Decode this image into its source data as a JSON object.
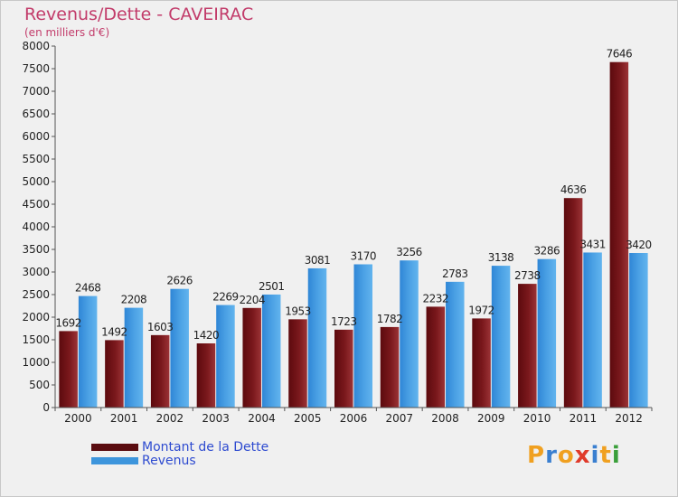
{
  "header": {
    "title": "Revenus/Dette - CAVEIRAC",
    "subtitle": "(en milliers d'€)"
  },
  "legend": {
    "debt_label": "Montant de la Dette",
    "revenue_label": "Revenus"
  },
  "logo": {
    "text": "Proxiti",
    "letters": [
      "P",
      "r",
      "o",
      "x",
      "i",
      "t",
      "i"
    ],
    "colors": [
      "#f0a020",
      "#3a7fd0",
      "#f0a020",
      "#e03a2a",
      "#3a7fd0",
      "#f0a020",
      "#3a9f3a"
    ]
  },
  "colors": {
    "debt": "#8b1f22",
    "revenue": "#4a9fe0",
    "title": "#c23b6a",
    "legend_text": "#2e4bd0"
  },
  "chart_data": {
    "type": "bar",
    "categories": [
      "2000",
      "2001",
      "2002",
      "2003",
      "2004",
      "2005",
      "2006",
      "2007",
      "2008",
      "2009",
      "2010",
      "2011",
      "2012"
    ],
    "series": [
      {
        "name": "Montant de la Dette",
        "values": [
          1692,
          1492,
          1603,
          1420,
          2204,
          1953,
          1723,
          1782,
          2232,
          1972,
          2738,
          4636,
          7646
        ]
      },
      {
        "name": "Revenus",
        "values": [
          2468,
          2208,
          2626,
          2269,
          2501,
          3081,
          3170,
          3256,
          2783,
          3138,
          3286,
          3431,
          3420
        ]
      }
    ],
    "ylim": [
      0,
      8000
    ],
    "ytick_step": 500,
    "yticks": [
      "0",
      "500",
      "1000",
      "1500",
      "2000",
      "2500",
      "3000",
      "3500",
      "4000",
      "4500",
      "5000",
      "5500",
      "6000",
      "6500",
      "7000",
      "7500",
      "8000"
    ],
    "title": "Revenus/Dette - CAVEIRAC",
    "ylabel": "(en milliers d'€)",
    "xlabel": "",
    "grid": false,
    "legend_position": "bottom-left"
  }
}
